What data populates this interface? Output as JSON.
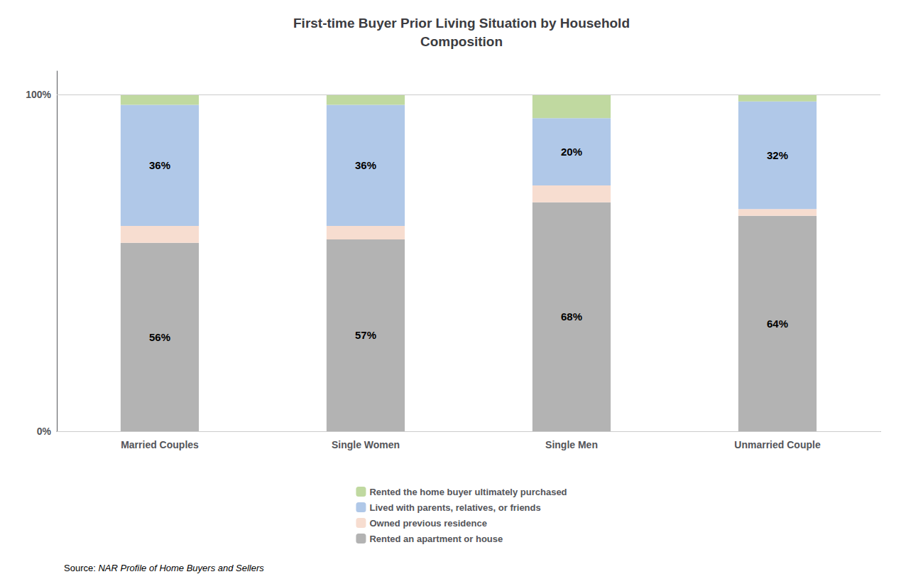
{
  "chart_data": {
    "type": "bar",
    "stacked": true,
    "title": "First-time Buyer Prior Living Situation by Household\nComposition",
    "categories": [
      "Married Couples",
      "Single Women",
      "Single Men",
      "Unmarried Couple"
    ],
    "series": [
      {
        "name": "Rented an apartment or house",
        "color": "#b3b3b3",
        "values": [
          56,
          57,
          68,
          64
        ],
        "value_labels": [
          "56%",
          "57%",
          "68%",
          "64%"
        ]
      },
      {
        "name": "Owned previous residence",
        "color": "#f7ddd0",
        "values": [
          5,
          4,
          5,
          2
        ]
      },
      {
        "name": "Lived with parents, relatives, or friends",
        "color": "#b0c8e8",
        "values": [
          36,
          36,
          20,
          32
        ],
        "value_labels": [
          "36%",
          "36%",
          "20%",
          "32%"
        ]
      },
      {
        "name": "Rented the home buyer ultimately purchased",
        "color": "#c0d9a0",
        "values": [
          3,
          3,
          7,
          2
        ]
      }
    ],
    "ylim": [
      0,
      107
    ],
    "yticks": [
      {
        "value": 0,
        "label": "0%"
      },
      {
        "value": 100,
        "label": "100%"
      }
    ],
    "grid": true,
    "legend": "bottom",
    "annotations": [
      "Source: ",
      "NAR Profile of Home Buyers and Sellers"
    ]
  }
}
